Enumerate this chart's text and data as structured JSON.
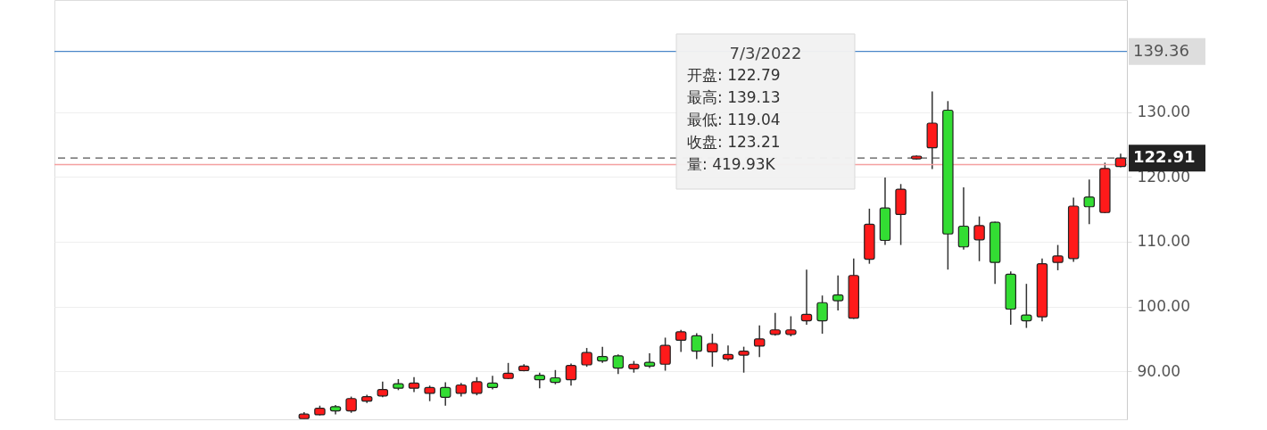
{
  "chart_data": {
    "type": "candlestick",
    "categories": [
      null,
      null,
      null,
      null,
      null,
      null,
      null,
      null,
      null,
      null,
      null,
      null,
      null,
      null,
      null,
      null,
      null,
      null,
      null,
      null,
      null,
      null,
      null,
      null,
      null,
      null,
      null,
      null,
      null,
      null,
      null,
      null,
      null,
      null,
      null,
      null,
      null,
      null,
      null,
      null,
      null,
      null,
      null,
      null,
      null,
      null,
      null,
      null,
      null,
      null,
      null,
      null,
      null
    ],
    "ohlc": [
      [
        82.7,
        83.7,
        82.7,
        83.4
      ],
      [
        83.3,
        84.7,
        83.2,
        84.3
      ],
      [
        84.55,
        84.8,
        83.35,
        83.9
      ],
      [
        83.9,
        86.1,
        83.6,
        85.8
      ],
      [
        85.4,
        86.4,
        85.1,
        86.1
      ],
      [
        86.2,
        88.4,
        86.0,
        87.2
      ],
      [
        88.1,
        88.8,
        87.1,
        87.4
      ],
      [
        87.4,
        89.1,
        86.8,
        88.2
      ],
      [
        86.6,
        87.8,
        85.4,
        87.5
      ],
      [
        87.5,
        88.3,
        84.7,
        86.0
      ],
      [
        86.6,
        88.2,
        86.1,
        87.9
      ],
      [
        86.6,
        89.1,
        86.3,
        88.4
      ],
      [
        88.2,
        89.3,
        87.2,
        87.5
      ],
      [
        88.9,
        91.3,
        88.8,
        89.7
      ],
      [
        90.1,
        91.1,
        90.0,
        90.8
      ],
      [
        89.4,
        89.8,
        87.4,
        88.7
      ],
      [
        89.0,
        90.2,
        88.0,
        88.3
      ],
      [
        88.7,
        91.2,
        87.8,
        90.9
      ],
      [
        91.0,
        93.6,
        90.7,
        92.9
      ],
      [
        92.3,
        93.8,
        91.3,
        91.6
      ],
      [
        92.4,
        92.6,
        89.6,
        90.5
      ],
      [
        90.4,
        91.6,
        89.8,
        91.1
      ],
      [
        91.4,
        92.8,
        90.5,
        90.8
      ],
      [
        91.1,
        95.2,
        90.1,
        94.0
      ],
      [
        94.8,
        96.4,
        93.0,
        96.1
      ],
      [
        95.5,
        95.9,
        91.9,
        93.1
      ],
      [
        93.0,
        95.8,
        90.7,
        94.3
      ],
      [
        91.9,
        94.0,
        91.6,
        92.6
      ],
      [
        92.5,
        93.8,
        89.8,
        93.1
      ],
      [
        93.9,
        97.1,
        92.2,
        95.0
      ],
      [
        95.7,
        99.0,
        95.5,
        96.4
      ],
      [
        95.7,
        98.5,
        95.4,
        96.4
      ],
      [
        97.8,
        105.7,
        97.2,
        98.8
      ],
      [
        100.6,
        101.7,
        95.8,
        97.8
      ],
      [
        101.8,
        104.8,
        99.4,
        100.9
      ],
      [
        98.2,
        107.4,
        98.1,
        104.8
      ],
      [
        107.3,
        115.1,
        106.6,
        112.7
      ],
      [
        115.2,
        119.9,
        109.5,
        110.2
      ],
      [
        114.2,
        118.9,
        109.5,
        118.1
      ],
      [
        122.79,
        123.3,
        122.7,
        123.21
      ],
      [
        124.5,
        133.2,
        121.2,
        128.3
      ],
      [
        130.3,
        131.7,
        105.7,
        111.2
      ],
      [
        112.4,
        118.4,
        108.8,
        109.2
      ],
      [
        110.3,
        113.9,
        107.0,
        112.5
      ],
      [
        113.0,
        113.1,
        103.5,
        106.8
      ],
      [
        105.0,
        105.4,
        97.2,
        99.6
      ],
      [
        98.7,
        103.5,
        96.7,
        97.8
      ],
      [
        98.4,
        107.4,
        97.7,
        106.6
      ],
      [
        106.8,
        109.5,
        105.6,
        107.8
      ],
      [
        107.4,
        116.8,
        106.9,
        115.5
      ],
      [
        116.9,
        119.6,
        112.7,
        115.4
      ],
      [
        114.5,
        122.2,
        114.4,
        121.3
      ],
      [
        121.6,
        123.6,
        121.5,
        122.91
      ]
    ],
    "colors": [
      "#ff1a1a",
      "#ff1a1a",
      "#33dd33",
      "#ff1a1a",
      "#ff1a1a",
      "#ff1a1a",
      "#33dd33",
      "#ff1a1a",
      "#ff1a1a",
      "#33dd33",
      "#ff1a1a",
      "#ff1a1a",
      "#33dd33",
      "#ff1a1a",
      "#ff1a1a",
      "#33dd33",
      "#33dd33",
      "#ff1a1a",
      "#ff1a1a",
      "#33dd33",
      "#33dd33",
      "#ff1a1a",
      "#33dd33",
      "#ff1a1a",
      "#ff1a1a",
      "#33dd33",
      "#ff1a1a",
      "#ff1a1a",
      "#ff1a1a",
      "#ff1a1a",
      "#ff1a1a",
      "#ff1a1a",
      "#ff1a1a",
      "#33dd33",
      "#33dd33",
      "#ff1a1a",
      "#ff1a1a",
      "#33dd33",
      "#ff1a1a",
      "#ff1a1a",
      "#ff1a1a",
      "#33dd33",
      "#33dd33",
      "#ff1a1a",
      "#33dd33",
      "#33dd33",
      "#33dd33",
      "#ff1a1a",
      "#ff1a1a",
      "#ff1a1a",
      "#33dd33",
      "#ff1a1a",
      "#ff1a1a"
    ],
    "ylim": [
      82.6,
      147.3
    ],
    "yticks": [
      {
        "value": 90,
        "label": "90.00"
      },
      {
        "value": 100,
        "label": "100.00"
      },
      {
        "value": 110,
        "label": "110.00"
      },
      {
        "value": 120,
        "label": "120.00"
      },
      {
        "value": 130,
        "label": "130.00"
      }
    ],
    "grid": "y",
    "tick_labels": "y",
    "ref_lines": [
      {
        "axis": "y",
        "value": 139.36,
        "label": "139.36",
        "color": "#4a86c8",
        "line_style": "solid"
      },
      {
        "axis": "y",
        "value": 122.91,
        "label": "122.91",
        "color": "#555555",
        "line_style": "dashed"
      },
      {
        "axis": "y",
        "value": 121.9,
        "color": "#f4a0a0",
        "line_style": "solid"
      }
    ],
    "annotations": [
      "7/3/2022",
      "开盘:   122.79",
      "最高:   139.13",
      "最低:   119.04",
      "收盘:   123.21",
      "量:     419.93K"
    ]
  }
}
